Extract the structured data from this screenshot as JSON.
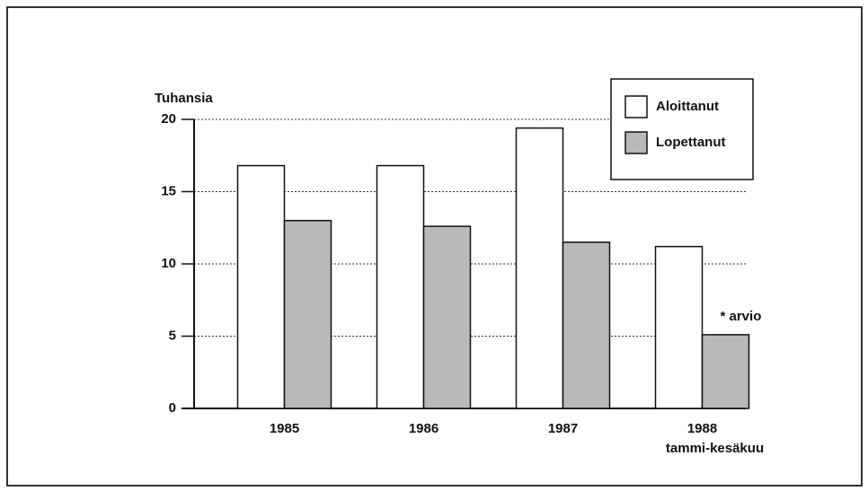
{
  "chart_data": {
    "type": "bar",
    "y_label": "Tuhansia",
    "categories": [
      "1985",
      "1986",
      "1987",
      "1988\ntammi-kesäkuu"
    ],
    "series": [
      {
        "name": "Aloittanut",
        "color": "#ffffff",
        "values": [
          16.8,
          16.8,
          19.4,
          11.2
        ]
      },
      {
        "name": "Lopettanut",
        "color": "#b9b9b9",
        "values": [
          13.0,
          12.6,
          11.5,
          5.1
        ]
      }
    ],
    "annotation": "* arvio",
    "ylim": [
      0,
      20
    ],
    "yticks": [
      0,
      5,
      10,
      15,
      20
    ],
    "grid": true,
    "legend": "upper right"
  }
}
